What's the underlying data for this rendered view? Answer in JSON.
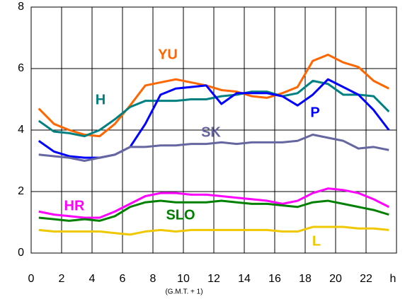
{
  "chart_data": {
    "type": "line",
    "x": [
      0.5,
      1.5,
      2.5,
      3.5,
      4.5,
      5.5,
      6.5,
      7.5,
      8.5,
      9.5,
      10.5,
      11.5,
      12.5,
      13.5,
      14.5,
      15.5,
      16.5,
      17.5,
      18.5,
      19.5,
      20.5,
      21.5,
      22.5,
      23.5
    ],
    "x_label": "h",
    "subtitle": "(G.M.T. + 1)",
    "xlim": [
      0,
      24
    ],
    "xticks": [
      0,
      2,
      4,
      6,
      8,
      10,
      12,
      14,
      16,
      18,
      20,
      22
    ],
    "ylim": [
      0,
      8
    ],
    "yticks": [
      0,
      2,
      4,
      6,
      8
    ],
    "grid": true,
    "series": [
      {
        "name": "YU",
        "color": "#ff6600",
        "values": [
          4.7,
          4.2,
          4.0,
          3.85,
          3.8,
          4.2,
          4.8,
          5.45,
          5.55,
          5.65,
          5.55,
          5.45,
          5.3,
          5.25,
          5.1,
          5.05,
          5.2,
          5.4,
          6.25,
          6.45,
          6.2,
          6.05,
          5.6,
          5.35
        ]
      },
      {
        "name": "H",
        "color": "#008080",
        "values": [
          4.3,
          3.95,
          3.9,
          3.8,
          4.0,
          4.35,
          4.75,
          4.95,
          4.95,
          4.95,
          5.0,
          5.0,
          5.1,
          5.15,
          5.25,
          5.25,
          5.1,
          5.2,
          5.6,
          5.5,
          5.15,
          5.15,
          5.1,
          4.6
        ]
      },
      {
        "name": "P",
        "color": "#0000ff",
        "values": [
          3.65,
          3.3,
          3.15,
          3.1,
          3.1,
          3.2,
          3.45,
          4.2,
          5.15,
          5.35,
          5.4,
          5.45,
          4.85,
          5.2,
          5.2,
          5.2,
          5.1,
          4.8,
          5.15,
          5.65,
          5.4,
          5.15,
          4.65,
          4.0
        ]
      },
      {
        "name": "SK",
        "color": "#6666a0",
        "values": [
          3.2,
          3.15,
          3.1,
          3.0,
          3.1,
          3.2,
          3.45,
          3.45,
          3.5,
          3.5,
          3.55,
          3.55,
          3.6,
          3.55,
          3.6,
          3.6,
          3.6,
          3.65,
          3.85,
          3.75,
          3.65,
          3.4,
          3.45,
          3.35
        ]
      },
      {
        "name": "HR",
        "color": "#ff00ff",
        "values": [
          1.35,
          1.25,
          1.2,
          1.15,
          1.15,
          1.35,
          1.6,
          1.85,
          1.95,
          1.95,
          1.9,
          1.9,
          1.85,
          1.8,
          1.75,
          1.7,
          1.6,
          1.7,
          1.95,
          2.1,
          2.05,
          1.95,
          1.75,
          1.5
        ]
      },
      {
        "name": "SLO",
        "color": "#008000",
        "values": [
          1.15,
          1.1,
          1.05,
          1.1,
          1.05,
          1.2,
          1.5,
          1.65,
          1.7,
          1.65,
          1.65,
          1.65,
          1.7,
          1.65,
          1.6,
          1.6,
          1.55,
          1.5,
          1.65,
          1.7,
          1.6,
          1.5,
          1.4,
          1.25
        ]
      },
      {
        "name": "L",
        "color": "#f0c800",
        "values": [
          0.75,
          0.7,
          0.7,
          0.7,
          0.7,
          0.65,
          0.6,
          0.7,
          0.75,
          0.7,
          0.75,
          0.75,
          0.75,
          0.75,
          0.75,
          0.75,
          0.7,
          0.7,
          0.85,
          0.85,
          0.85,
          0.8,
          0.8,
          0.75
        ]
      }
    ]
  }
}
